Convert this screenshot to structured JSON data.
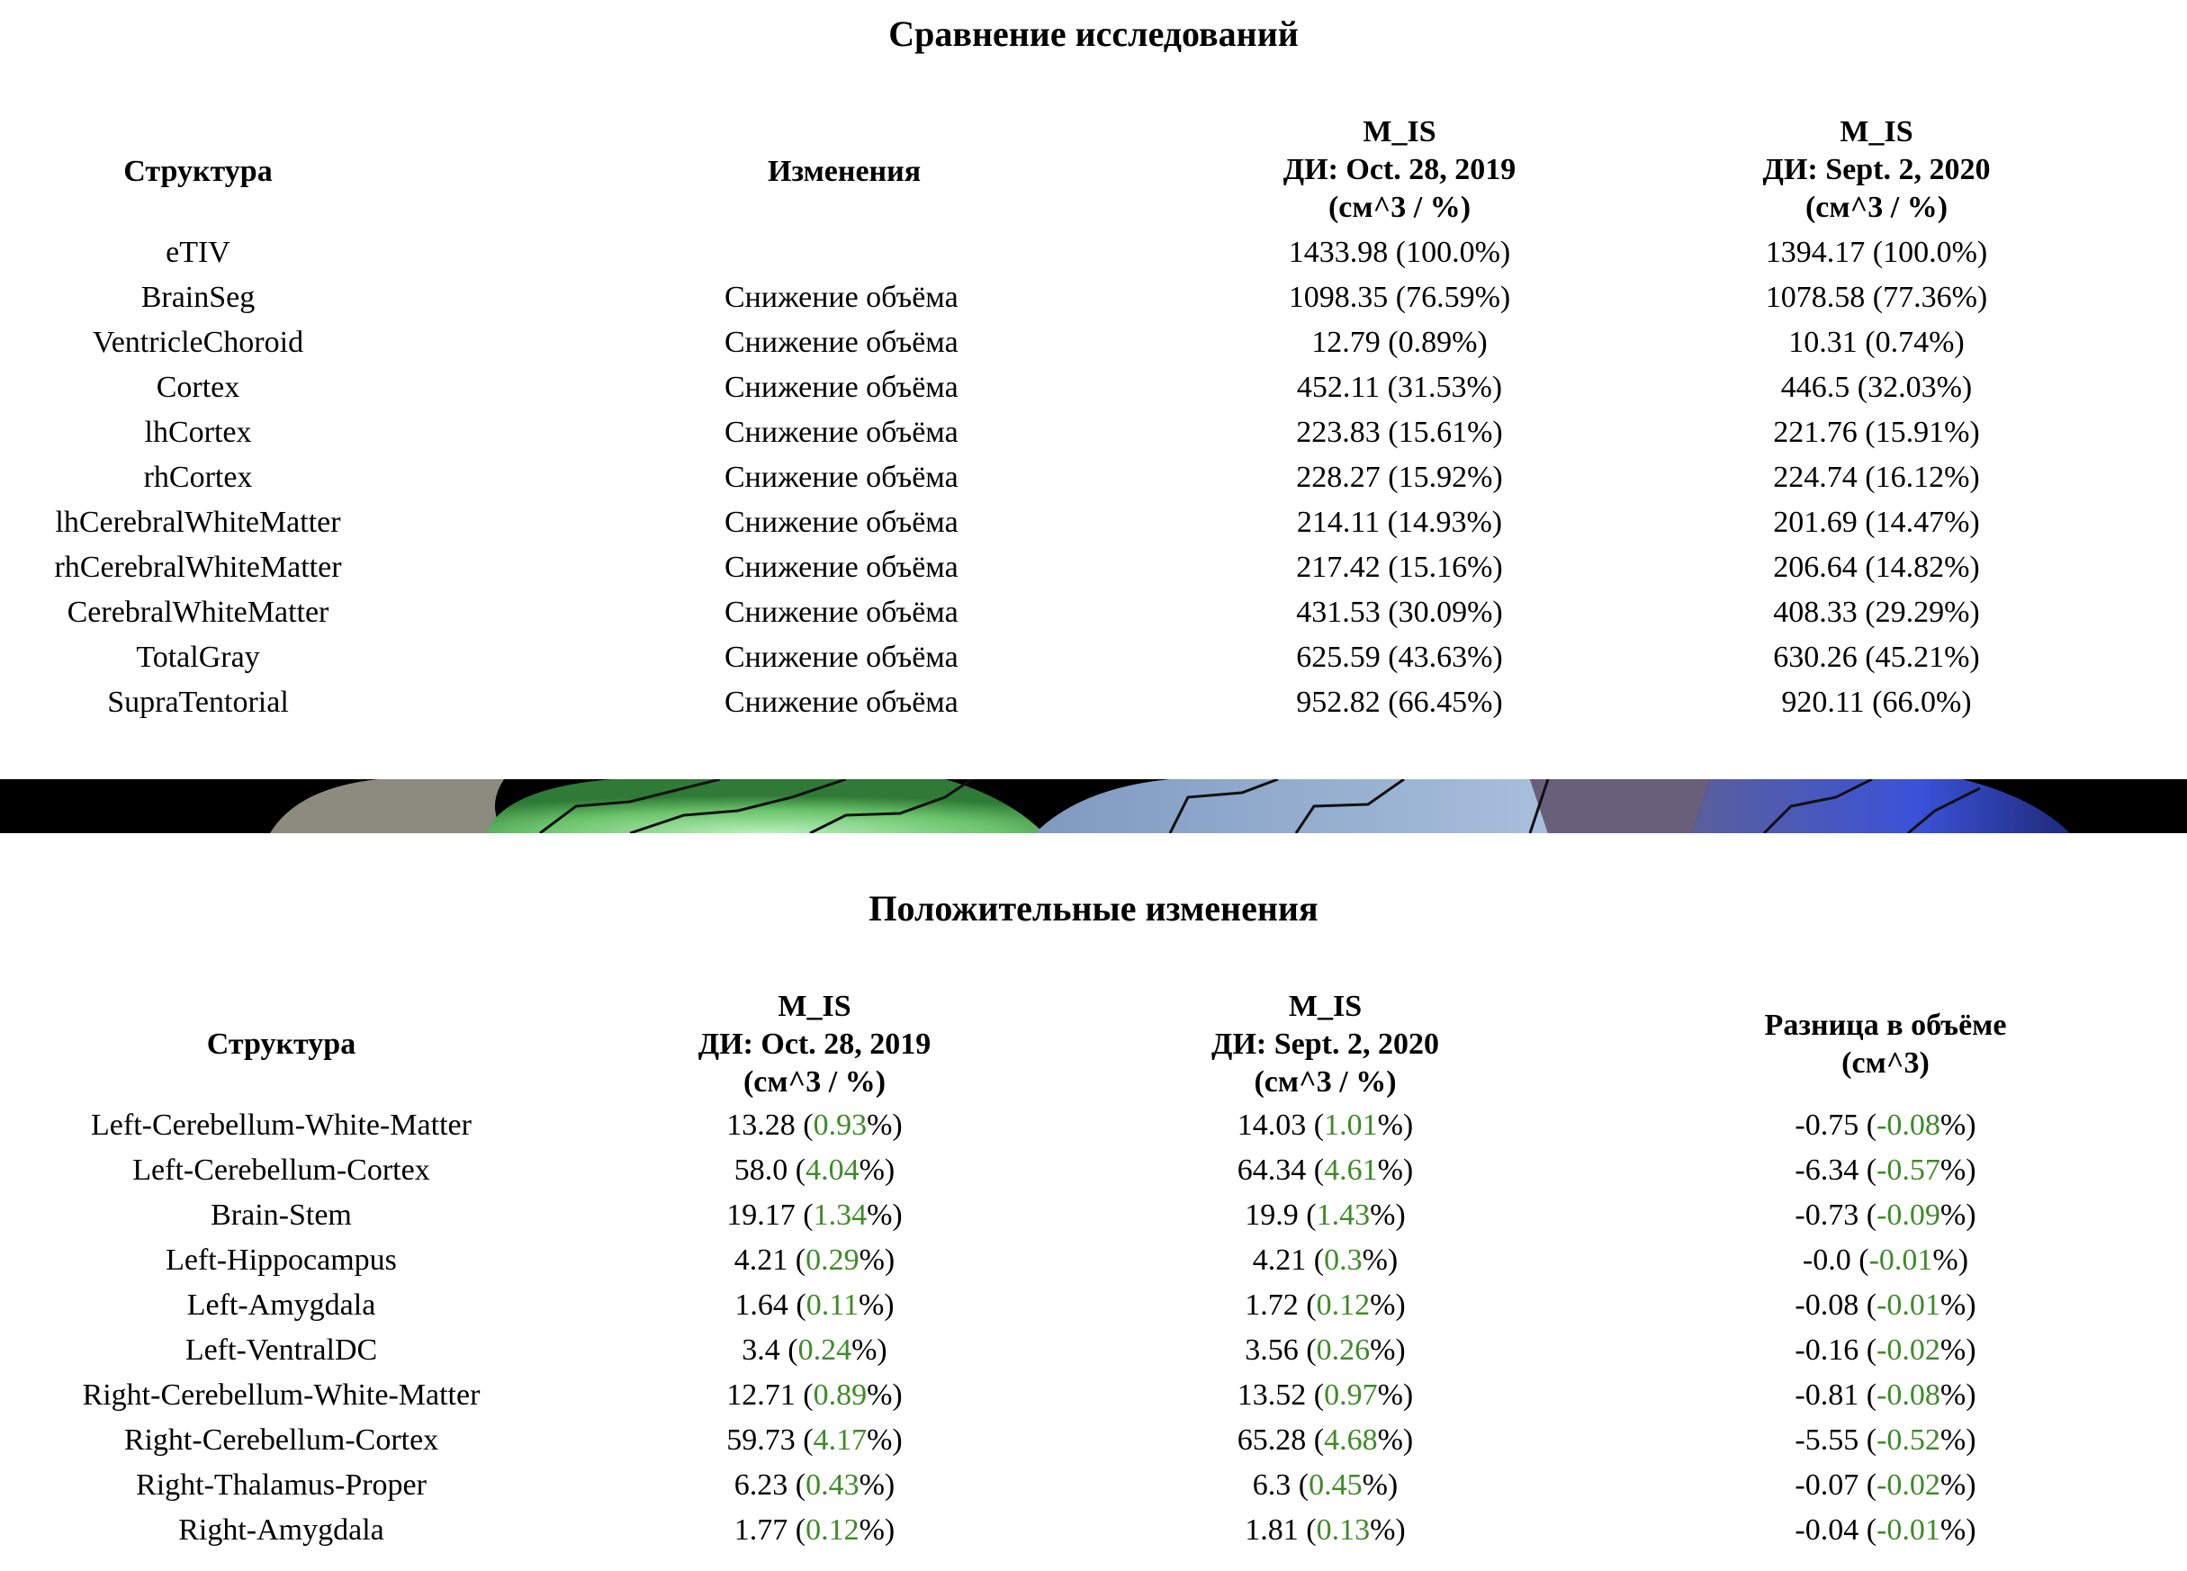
{
  "comparison": {
    "title": "Сравнение исследований",
    "headers": {
      "structure": "Структура",
      "changes": "Изменения",
      "study1": [
        "M_IS",
        "ДИ: Oct. 28, 2019",
        "(см^3 / %)"
      ],
      "study2": [
        "M_IS",
        "ДИ: Sept. 2, 2020",
        "(см^3 / %)"
      ]
    },
    "rows": [
      {
        "structure": "eTIV",
        "change": "",
        "v1": "1433.98 (100.0%)",
        "v2": "1394.17 (100.0%)"
      },
      {
        "structure": "BrainSeg",
        "change": "Снижение объёма",
        "v1": "1098.35 (76.59%)",
        "v2": "1078.58 (77.36%)"
      },
      {
        "structure": "VentricleChoroid",
        "change": "Снижение объёма",
        "v1": "12.79 (0.89%)",
        "v2": "10.31 (0.74%)"
      },
      {
        "structure": "Cortex",
        "change": "Снижение объёма",
        "v1": "452.11 (31.53%)",
        "v2": "446.5 (32.03%)"
      },
      {
        "structure": "lhCortex",
        "change": "Снижение объёма",
        "v1": "223.83 (15.61%)",
        "v2": "221.76 (15.91%)"
      },
      {
        "structure": "rhCortex",
        "change": "Снижение объёма",
        "v1": "228.27 (15.92%)",
        "v2": "224.74 (16.12%)"
      },
      {
        "structure": "lhCerebralWhiteMatter",
        "change": "Снижение объёма",
        "v1": "214.11 (14.93%)",
        "v2": "201.69 (14.47%)"
      },
      {
        "structure": "rhCerebralWhiteMatter",
        "change": "Снижение объёма",
        "v1": "217.42 (15.16%)",
        "v2": "206.64 (14.82%)"
      },
      {
        "structure": "CerebralWhiteMatter",
        "change": "Снижение объёма",
        "v1": "431.53 (30.09%)",
        "v2": "408.33 (29.29%)"
      },
      {
        "structure": "TotalGray",
        "change": "Снижение объёма",
        "v1": "625.59 (43.63%)",
        "v2": "630.26 (45.21%)"
      },
      {
        "structure": "SupraTentorial",
        "change": "Снижение объёма",
        "v1": "952.82 (66.45%)",
        "v2": "920.11 (66.0%)"
      }
    ]
  },
  "positive": {
    "title": "Положительные изменения",
    "headers": {
      "structure": "Структура",
      "study1": [
        "M_IS",
        "ДИ: Oct. 28, 2019",
        "(см^3 / %)"
      ],
      "study2": [
        "M_IS",
        "ДИ: Sept. 2, 2020",
        "(см^3 / %)"
      ],
      "diff": [
        "Разница в объёме",
        "(см^3)"
      ]
    },
    "rows": [
      {
        "structure": "Left-Cerebellum-White-Matter",
        "v1": "13.28",
        "p1": "0.93",
        "v2": "14.03",
        "p2": "1.01",
        "d": "-0.75",
        "dp": "-0.08"
      },
      {
        "structure": "Left-Cerebellum-Cortex",
        "v1": "58.0",
        "p1": "4.04",
        "v2": "64.34",
        "p2": "4.61",
        "d": "-6.34",
        "dp": "-0.57"
      },
      {
        "structure": "Brain-Stem",
        "v1": "19.17",
        "p1": "1.34",
        "v2": "19.9",
        "p2": "1.43",
        "d": "-0.73",
        "dp": "-0.09"
      },
      {
        "structure": "Left-Hippocampus",
        "v1": "4.21",
        "p1": "0.29",
        "v2": "4.21",
        "p2": "0.3",
        "d": "-0.0",
        "dp": "-0.01"
      },
      {
        "structure": "Left-Amygdala",
        "v1": "1.64",
        "p1": "0.11",
        "v2": "1.72",
        "p2": "0.12",
        "d": "-0.08",
        "dp": "-0.01"
      },
      {
        "structure": "Left-VentralDC",
        "v1": "3.4",
        "p1": "0.24",
        "v2": "3.56",
        "p2": "0.26",
        "d": "-0.16",
        "dp": "-0.02"
      },
      {
        "structure": "Right-Cerebellum-White-Matter",
        "v1": "12.71",
        "p1": "0.89",
        "v2": "13.52",
        "p2": "0.97",
        "d": "-0.81",
        "dp": "-0.08"
      },
      {
        "structure": "Right-Cerebellum-Cortex",
        "v1": "59.73",
        "p1": "4.17",
        "v2": "65.28",
        "p2": "4.68",
        "d": "-5.55",
        "dp": "-0.52"
      },
      {
        "structure": "Right-Thalamus-Proper",
        "v1": "6.23",
        "p1": "0.43",
        "v2": "6.3",
        "p2": "0.45",
        "d": "-0.07",
        "dp": "-0.02"
      },
      {
        "structure": "Right-Amygdala",
        "v1": "1.77",
        "p1": "0.12",
        "v2": "1.81",
        "p2": "0.13",
        "d": "-0.04",
        "dp": "-0.01"
      }
    ]
  },
  "colors": {
    "percent_highlight": "#3d8b26"
  },
  "banner": {
    "icon": "brain-surface-image"
  }
}
